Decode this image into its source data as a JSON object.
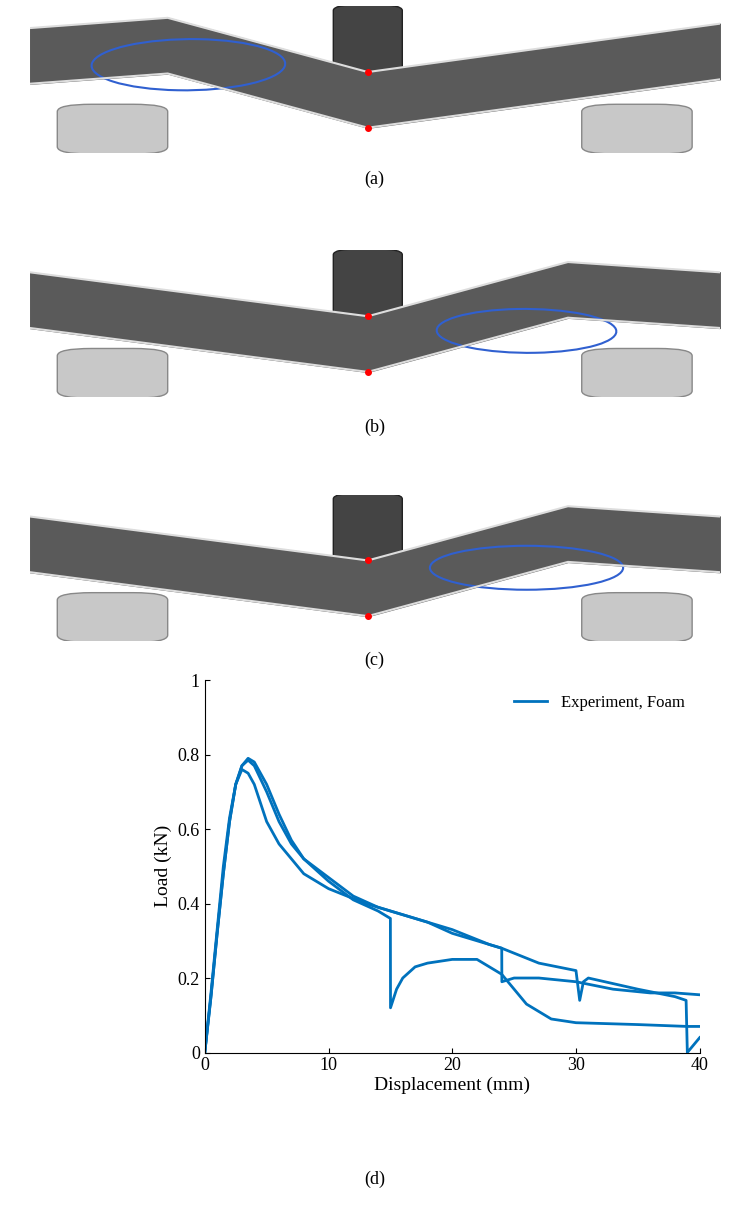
{
  "photos": [
    {
      "label": "(a)"
    },
    {
      "label": "(b)"
    },
    {
      "label": "(c)"
    }
  ],
  "chart_data": {
    "type": "line",
    "annotations": [
      {
        "text": "(d)"
      }
    ],
    "x_label": "Displacement (mm)",
    "y_label": "Load (kN)",
    "xlim": [
      0,
      40
    ],
    "xticks": [
      0,
      10,
      20,
      30,
      40
    ],
    "ylim": [
      0,
      1
    ],
    "yticks": [
      0,
      0.2,
      0.4,
      0.6,
      0.8,
      1
    ],
    "legend": "upper right",
    "series": [
      {
        "name": "Experiment, Foam",
        "color": "#0072bd",
        "x": [
          0,
          0.5,
          1,
          1.5,
          2,
          2.5,
          3,
          3.5,
          4,
          5,
          6,
          7,
          8,
          10,
          12,
          14,
          15,
          15.01,
          15.5,
          16,
          17,
          18,
          20,
          22,
          24,
          26,
          28,
          30,
          35,
          39,
          40
        ],
        "values": [
          0,
          0.15,
          0.32,
          0.48,
          0.62,
          0.72,
          0.77,
          0.79,
          0.78,
          0.72,
          0.64,
          0.57,
          0.52,
          0.46,
          0.41,
          0.38,
          0.36,
          0.12,
          0.17,
          0.2,
          0.23,
          0.24,
          0.25,
          0.25,
          0.21,
          0.13,
          0.09,
          0.08,
          0.075,
          0.07,
          0.07
        ]
      },
      {
        "color": "#0072bd",
        "x": [
          0,
          0.5,
          1,
          1.5,
          2,
          2.5,
          3,
          3.5,
          4,
          5,
          6,
          7,
          8,
          10,
          12,
          14,
          17,
          20,
          23,
          24,
          24.01,
          25,
          27,
          30,
          33,
          36,
          38,
          40
        ],
        "values": [
          0,
          0.15,
          0.32,
          0.48,
          0.62,
          0.72,
          0.77,
          0.785,
          0.77,
          0.7,
          0.62,
          0.56,
          0.52,
          0.47,
          0.42,
          0.39,
          0.36,
          0.33,
          0.29,
          0.28,
          0.19,
          0.2,
          0.2,
          0.19,
          0.17,
          0.16,
          0.16,
          0.155
        ]
      },
      {
        "color": "#0072bd",
        "x": [
          0,
          0.5,
          1,
          1.5,
          2,
          2.5,
          3,
          3.5,
          4,
          5,
          6,
          7,
          8,
          10,
          13,
          16,
          18,
          20,
          24,
          27,
          30,
          30.3,
          30.6,
          31,
          35,
          38,
          38.9,
          39,
          40
        ],
        "values": [
          0,
          0.16,
          0.33,
          0.5,
          0.63,
          0.72,
          0.76,
          0.75,
          0.72,
          0.62,
          0.56,
          0.52,
          0.48,
          0.44,
          0.4,
          0.37,
          0.35,
          0.32,
          0.28,
          0.24,
          0.22,
          0.14,
          0.19,
          0.2,
          0.17,
          0.15,
          0.14,
          0.0,
          0.04
        ]
      }
    ]
  }
}
